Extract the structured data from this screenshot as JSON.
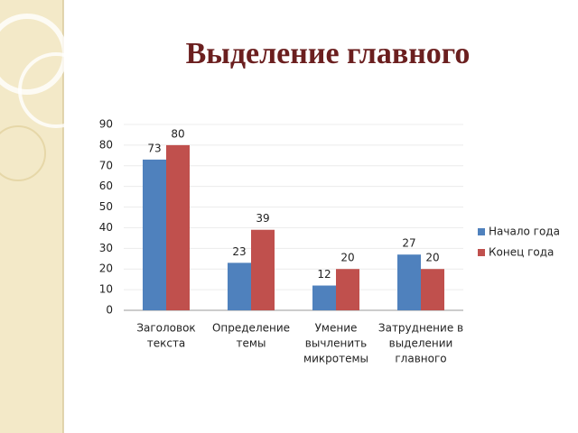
{
  "chart_data": {
    "type": "bar",
    "title": "Выделение главного",
    "categories": [
      [
        "Заголовок",
        "текста"
      ],
      [
        "Определение",
        "темы"
      ],
      [
        "Умение",
        "вычленить",
        "микротемы"
      ],
      [
        "Затруднение в",
        "выделении",
        "главного"
      ]
    ],
    "series": [
      {
        "name": "Начало года",
        "color": "#4f81bd",
        "values": [
          73,
          23,
          12,
          27
        ]
      },
      {
        "name": "Конец года",
        "color": "#c0504d",
        "values": [
          80,
          39,
          20,
          20
        ]
      }
    ],
    "ylim": [
      0,
      90
    ],
    "yticks": [
      0,
      10,
      20,
      30,
      40,
      50,
      60,
      70,
      80,
      90
    ],
    "grid": true,
    "legend": "right"
  }
}
